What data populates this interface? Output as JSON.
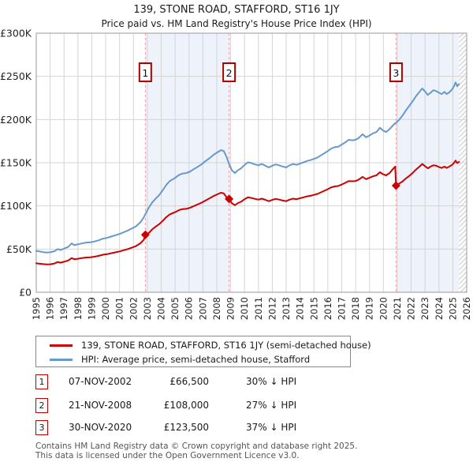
{
  "title": "139, STONE ROAD, STAFFORD, ST16 1JY",
  "subtitle": "Price paid vs. HM Land Registry's House Price Index (HPI)",
  "legend": [
    {
      "label": "139, STONE ROAD, STAFFORD, ST16 1JY (semi-detached house)",
      "color": "#cc0000"
    },
    {
      "label": "HPI: Average price, semi-detached house, Stafford",
      "color": "#6699cc"
    }
  ],
  "transactions": [
    {
      "num": "1",
      "date": "07-NOV-2002",
      "price": "£66,500",
      "hpi": "30% ↓ HPI"
    },
    {
      "num": "2",
      "date": "21-NOV-2008",
      "price": "£108,000",
      "hpi": "27% ↓ HPI"
    },
    {
      "num": "3",
      "date": "30-NOV-2020",
      "price": "£123,500",
      "hpi": "37% ↓ HPI"
    }
  ],
  "footer": [
    "Contains HM Land Registry data © Crown copyright and database right 2025.",
    "This data is licensed under the Open Government Licence v3.0."
  ],
  "chart_data": {
    "type": "line",
    "title": "139, STONE ROAD, STAFFORD, ST16 1JY — Price paid vs. HPI",
    "x_range": [
      1995,
      2026
    ],
    "y_range_k": [
      0,
      300
    ],
    "y_unit": "GBP thousands",
    "x_ticks": [
      1995,
      1996,
      1997,
      1998,
      1999,
      2000,
      2001,
      2002,
      2003,
      2004,
      2005,
      2006,
      2007,
      2008,
      2009,
      2010,
      2011,
      2012,
      2013,
      2014,
      2015,
      2016,
      2017,
      2018,
      2019,
      2020,
      2021,
      2022,
      2023,
      2024,
      2025,
      2026
    ],
    "y_ticks": [
      {
        "v": 0,
        "label": "£0"
      },
      {
        "v": 50,
        "label": "£50K"
      },
      {
        "v": 100,
        "label": "£100K"
      },
      {
        "v": 150,
        "label": "£150K"
      },
      {
        "v": 200,
        "label": "£200K"
      },
      {
        "v": 250,
        "label": "£250K"
      },
      {
        "v": 300,
        "label": "£300K"
      }
    ],
    "shaded_bands": [
      [
        2002.854,
        2008.888
      ],
      [
        2020.913,
        2025.45
      ]
    ],
    "hatch_band": [
      2025.45,
      2026
    ],
    "sales": [
      {
        "n": "1",
        "year": 2002.854,
        "price_k": 66.5,
        "date": "07-NOV-2002"
      },
      {
        "n": "2",
        "year": 2008.888,
        "price_k": 108,
        "date": "21-NOV-2008"
      },
      {
        "n": "3",
        "year": 2020.913,
        "price_k": 123.5,
        "date": "30-NOV-2020"
      }
    ],
    "series": [
      {
        "name": "139, STONE ROAD, STAFFORD, ST16 1JY (semi-detached house)",
        "color": "#cc0000",
        "points": [
          [
            1995.0,
            33.5
          ],
          [
            1995.25,
            33
          ],
          [
            1995.5,
            32.6
          ],
          [
            1995.75,
            32.2
          ],
          [
            1996.0,
            32.4
          ],
          [
            1996.3,
            33.2
          ],
          [
            1996.55,
            35
          ],
          [
            1996.75,
            34.2
          ],
          [
            1997.0,
            35.3
          ],
          [
            1997.3,
            36.8
          ],
          [
            1997.55,
            39.5
          ],
          [
            1997.75,
            38.2
          ],
          [
            1998.0,
            38.8
          ],
          [
            1998.3,
            39.6
          ],
          [
            1998.6,
            40.2
          ],
          [
            1998.9,
            40.5
          ],
          [
            1999.2,
            41.2
          ],
          [
            1999.5,
            42.2
          ],
          [
            1999.8,
            43.4
          ],
          [
            2000.1,
            44.1
          ],
          [
            2000.4,
            45.2
          ],
          [
            2000.7,
            46.2
          ],
          [
            2001.0,
            47.3
          ],
          [
            2001.3,
            48.7
          ],
          [
            2001.6,
            50
          ],
          [
            2001.9,
            51.8
          ],
          [
            2002.2,
            53.6
          ],
          [
            2002.5,
            56.7
          ],
          [
            2002.75,
            60.9
          ],
          [
            2002.854,
            66.5
          ],
          [
            2003.1,
            68.6
          ],
          [
            2003.35,
            72.8
          ],
          [
            2003.6,
            76
          ],
          [
            2003.85,
            78.8
          ],
          [
            2004.1,
            82.6
          ],
          [
            2004.35,
            86.8
          ],
          [
            2004.6,
            90
          ],
          [
            2004.85,
            91.7
          ],
          [
            2005.05,
            93.1
          ],
          [
            2005.3,
            95.2
          ],
          [
            2005.55,
            96.3
          ],
          [
            2005.8,
            96.6
          ],
          [
            2006.05,
            97.7
          ],
          [
            2006.3,
            99.4
          ],
          [
            2006.6,
            101.5
          ],
          [
            2006.9,
            103.6
          ],
          [
            2007.2,
            106.4
          ],
          [
            2007.5,
            108.9
          ],
          [
            2007.8,
            111.7
          ],
          [
            2008.05,
            113.4
          ],
          [
            2008.3,
            115.2
          ],
          [
            2008.5,
            114.5
          ],
          [
            2008.7,
            110
          ],
          [
            2008.888,
            108
          ],
          [
            2009.1,
            103
          ],
          [
            2009.3,
            100.8
          ],
          [
            2009.5,
            103
          ],
          [
            2009.75,
            104.8
          ],
          [
            2010.0,
            107.7
          ],
          [
            2010.25,
            109.9
          ],
          [
            2010.5,
            109.2
          ],
          [
            2010.75,
            108.1
          ],
          [
            2011.0,
            107.3
          ],
          [
            2011.25,
            108.4
          ],
          [
            2011.5,
            107
          ],
          [
            2011.75,
            105.5
          ],
          [
            2012.0,
            107
          ],
          [
            2012.25,
            108.1
          ],
          [
            2012.5,
            107.3
          ],
          [
            2012.75,
            106.2
          ],
          [
            2013.0,
            105.5
          ],
          [
            2013.25,
            107.3
          ],
          [
            2013.5,
            108.4
          ],
          [
            2013.75,
            107.7
          ],
          [
            2014.0,
            108.8
          ],
          [
            2014.25,
            109.9
          ],
          [
            2014.5,
            111
          ],
          [
            2014.75,
            111.7
          ],
          [
            2015.0,
            112.8
          ],
          [
            2015.25,
            113.9
          ],
          [
            2015.5,
            115.7
          ],
          [
            2015.75,
            117.5
          ],
          [
            2016.0,
            119.4
          ],
          [
            2016.25,
            121.6
          ],
          [
            2016.5,
            122.6
          ],
          [
            2016.75,
            123
          ],
          [
            2017.0,
            124.8
          ],
          [
            2017.25,
            126.7
          ],
          [
            2017.5,
            128.8
          ],
          [
            2017.75,
            128.5
          ],
          [
            2018.0,
            128.8
          ],
          [
            2018.25,
            130.7
          ],
          [
            2018.5,
            133.6
          ],
          [
            2018.75,
            131
          ],
          [
            2019.0,
            132.5
          ],
          [
            2019.25,
            134.3
          ],
          [
            2019.5,
            135.4
          ],
          [
            2019.75,
            139
          ],
          [
            2020.0,
            136.5
          ],
          [
            2020.2,
            135.4
          ],
          [
            2020.45,
            138
          ],
          [
            2020.7,
            143
          ],
          [
            2020.85,
            145.5
          ],
          [
            2020.913,
            123.5
          ],
          [
            2021.1,
            125.5
          ],
          [
            2021.35,
            128
          ],
          [
            2021.6,
            131.5
          ],
          [
            2021.85,
            134.5
          ],
          [
            2022.1,
            138
          ],
          [
            2022.35,
            142
          ],
          [
            2022.6,
            145.5
          ],
          [
            2022.8,
            148.5
          ],
          [
            2023.0,
            146
          ],
          [
            2023.2,
            143.5
          ],
          [
            2023.4,
            145.5
          ],
          [
            2023.6,
            147
          ],
          [
            2023.8,
            146.5
          ],
          [
            2024.0,
            145
          ],
          [
            2024.2,
            144
          ],
          [
            2024.4,
            145.5
          ],
          [
            2024.55,
            144
          ],
          [
            2024.75,
            145.5
          ],
          [
            2024.95,
            147.5
          ],
          [
            2025.1,
            150
          ],
          [
            2025.2,
            152.5
          ],
          [
            2025.32,
            149.5
          ],
          [
            2025.45,
            151
          ]
        ]
      },
      {
        "name": "HPI: Average price, semi-detached house, Stafford",
        "color": "#6699cc",
        "points": [
          [
            1995.0,
            48
          ],
          [
            1995.25,
            47.2
          ],
          [
            1995.5,
            46.5
          ],
          [
            1995.75,
            46
          ],
          [
            1996.0,
            46.3
          ],
          [
            1996.3,
            47.5
          ],
          [
            1996.55,
            50
          ],
          [
            1996.75,
            48.8
          ],
          [
            1997.0,
            50.5
          ],
          [
            1997.3,
            52.5
          ],
          [
            1997.55,
            56.5
          ],
          [
            1997.75,
            54.5
          ],
          [
            1998.0,
            55.5
          ],
          [
            1998.3,
            56.5
          ],
          [
            1998.6,
            57.5
          ],
          [
            1998.9,
            57.8
          ],
          [
            1999.2,
            58.8
          ],
          [
            1999.5,
            60.2
          ],
          [
            1999.8,
            62
          ],
          [
            2000.1,
            63
          ],
          [
            2000.4,
            64.5
          ],
          [
            2000.7,
            66
          ],
          [
            2001.0,
            67.5
          ],
          [
            2001.3,
            69.5
          ],
          [
            2001.6,
            71.5
          ],
          [
            2001.9,
            74
          ],
          [
            2002.2,
            76.5
          ],
          [
            2002.5,
            81
          ],
          [
            2002.75,
            87
          ],
          [
            2002.92,
            92.5
          ],
          [
            2003.1,
            98
          ],
          [
            2003.35,
            104
          ],
          [
            2003.6,
            108.5
          ],
          [
            2003.85,
            112.5
          ],
          [
            2004.1,
            118
          ],
          [
            2004.35,
            124
          ],
          [
            2004.6,
            128.5
          ],
          [
            2004.85,
            131
          ],
          [
            2005.05,
            133
          ],
          [
            2005.3,
            136
          ],
          [
            2005.55,
            137.5
          ],
          [
            2005.8,
            138
          ],
          [
            2006.05,
            139.5
          ],
          [
            2006.3,
            142
          ],
          [
            2006.6,
            145
          ],
          [
            2006.9,
            148
          ],
          [
            2007.2,
            152
          ],
          [
            2007.5,
            155.5
          ],
          [
            2007.8,
            159.5
          ],
          [
            2008.05,
            162
          ],
          [
            2008.3,
            164.5
          ],
          [
            2008.5,
            163.5
          ],
          [
            2008.7,
            157
          ],
          [
            2008.9,
            148
          ],
          [
            2009.1,
            141
          ],
          [
            2009.3,
            138
          ],
          [
            2009.5,
            141
          ],
          [
            2009.75,
            143.5
          ],
          [
            2010.0,
            147.5
          ],
          [
            2010.25,
            150.5
          ],
          [
            2010.5,
            149.5
          ],
          [
            2010.75,
            148
          ],
          [
            2011.0,
            147
          ],
          [
            2011.25,
            148.5
          ],
          [
            2011.5,
            146.5
          ],
          [
            2011.75,
            144.5
          ],
          [
            2012.0,
            146.5
          ],
          [
            2012.25,
            148
          ],
          [
            2012.5,
            147
          ],
          [
            2012.75,
            145.5
          ],
          [
            2013.0,
            144.5
          ],
          [
            2013.25,
            147
          ],
          [
            2013.5,
            148.5
          ],
          [
            2013.75,
            147.5
          ],
          [
            2014.0,
            149
          ],
          [
            2014.25,
            150.5
          ],
          [
            2014.5,
            152
          ],
          [
            2014.75,
            153
          ],
          [
            2015.0,
            154.5
          ],
          [
            2015.25,
            156
          ],
          [
            2015.5,
            158.5
          ],
          [
            2015.75,
            161
          ],
          [
            2016.0,
            163.5
          ],
          [
            2016.25,
            166.5
          ],
          [
            2016.5,
            168
          ],
          [
            2016.75,
            168.5
          ],
          [
            2017.0,
            171
          ],
          [
            2017.25,
            173.5
          ],
          [
            2017.5,
            176.5
          ],
          [
            2017.75,
            176
          ],
          [
            2018.0,
            176.5
          ],
          [
            2018.25,
            179
          ],
          [
            2018.5,
            183
          ],
          [
            2018.75,
            179.5
          ],
          [
            2019.0,
            181.5
          ],
          [
            2019.25,
            184
          ],
          [
            2019.5,
            185.5
          ],
          [
            2019.75,
            190.5
          ],
          [
            2020.0,
            187
          ],
          [
            2020.2,
            185.5
          ],
          [
            2020.45,
            189
          ],
          [
            2020.7,
            193.5
          ],
          [
            2020.92,
            196.5
          ],
          [
            2021.1,
            199
          ],
          [
            2021.35,
            204
          ],
          [
            2021.6,
            210
          ],
          [
            2021.85,
            215.5
          ],
          [
            2022.1,
            221
          ],
          [
            2022.35,
            227
          ],
          [
            2022.6,
            232
          ],
          [
            2022.8,
            236
          ],
          [
            2023.0,
            232.5
          ],
          [
            2023.2,
            228.5
          ],
          [
            2023.4,
            231
          ],
          [
            2023.6,
            234
          ],
          [
            2023.8,
            233
          ],
          [
            2024.0,
            231
          ],
          [
            2024.2,
            229.5
          ],
          [
            2024.4,
            232
          ],
          [
            2024.55,
            229.5
          ],
          [
            2024.75,
            231.5
          ],
          [
            2024.95,
            235
          ],
          [
            2025.1,
            239
          ],
          [
            2025.2,
            243
          ],
          [
            2025.32,
            238.5
          ],
          [
            2025.45,
            241
          ]
        ]
      }
    ],
    "colors": {
      "property": "#cc0000",
      "hpi": "#6699cc",
      "band": "#edf2fb",
      "grid": "#d4d4d4",
      "frame": "#999999",
      "sale_line": "#f09a9a",
      "marker_box": "#aa0000",
      "hatch": "#c9c9c9"
    },
    "legend_position": "bottom",
    "grid": true
  }
}
